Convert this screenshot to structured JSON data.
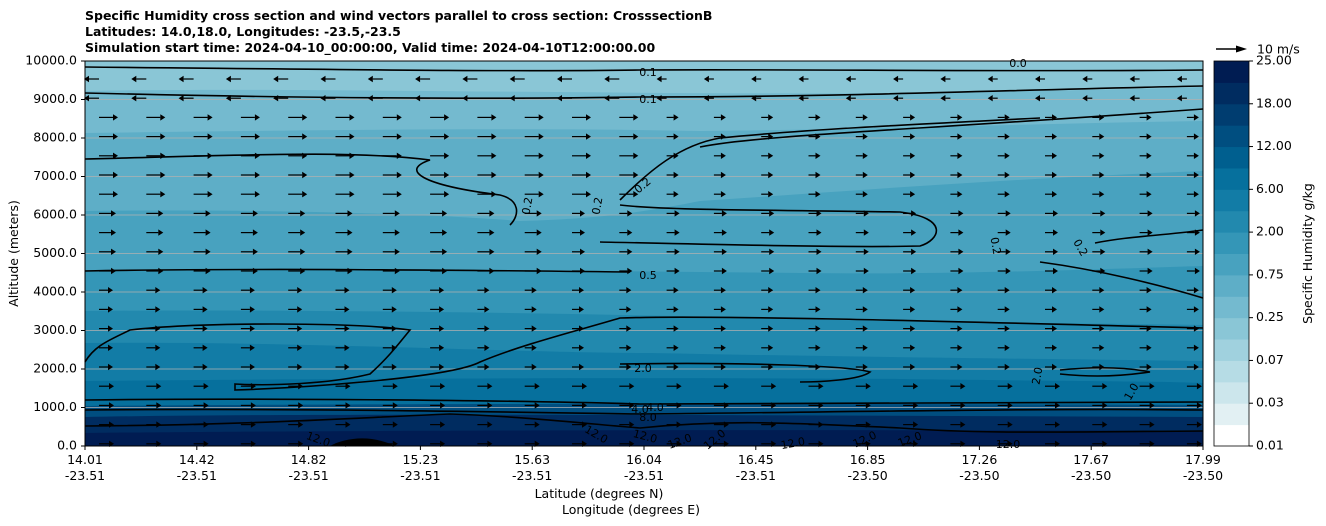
{
  "chart_data": {
    "type": "contour",
    "title_lines": [
      "Specific Humidity cross section and wind vectors parallel to cross section: CrosssectionB",
      "Latitudes: 14.0,18.0, Longitudes: -23.5,-23.5",
      "Simulation start time: 2024-04-10_00:00:00, Valid time: 2024-04-10T12:00:00.00"
    ],
    "ylabel": "Altitude (meters)",
    "xlabel_lat": "Latitude (degrees N)",
    "xlabel_lon": "Longitude (degrees E)",
    "ylim": [
      0,
      10000
    ],
    "y_ticks": [
      "0.0",
      "1000.0",
      "2000.0",
      "3000.0",
      "4000.0",
      "5000.0",
      "6000.0",
      "7000.0",
      "8000.0",
      "9000.0",
      "10000.0"
    ],
    "x_ticks": [
      {
        "lat": "14.01",
        "lon": "-23.51"
      },
      {
        "lat": "14.42",
        "lon": "-23.51"
      },
      {
        "lat": "14.82",
        "lon": "-23.51"
      },
      {
        "lat": "15.23",
        "lon": "-23.51"
      },
      {
        "lat": "15.63",
        "lon": "-23.51"
      },
      {
        "lat": "16.04",
        "lon": "-23.51"
      },
      {
        "lat": "16.45",
        "lon": "-23.51"
      },
      {
        "lat": "16.85",
        "lon": "-23.50"
      },
      {
        "lat": "17.26",
        "lon": "-23.50"
      },
      {
        "lat": "17.67",
        "lon": "-23.50"
      },
      {
        "lat": "17.99",
        "lon": "-23.50"
      }
    ],
    "colorbar": {
      "label": "Specific Humidity g/kg",
      "ticks": [
        "0.01",
        "0.03",
        "0.07",
        "0.25",
        "0.75",
        "2.00",
        "6.00",
        "12.00",
        "18.00",
        "25.00"
      ],
      "colors": [
        "#ffffff",
        "#e2f0f3",
        "#cce6ec",
        "#b6dce5",
        "#a0d1de",
        "#8ac6d6",
        "#74bacf",
        "#5eaec7",
        "#48a2bf",
        "#3496b7",
        "#2289ae",
        "#127ca6",
        "#06709d",
        "#005f8f",
        "#004e80",
        "#003d70",
        "#002c60",
        "#001c52"
      ]
    },
    "contour_levels": [
      "0.1",
      "0.2",
      "0.5",
      "1.0",
      "2.0",
      "4.0",
      "8.0",
      "12.0"
    ],
    "contour_labels": [
      {
        "text": "0.1"
      },
      {
        "text": "0.1"
      },
      {
        "text": "0.0"
      },
      {
        "text": "0.2"
      },
      {
        "text": "0.2"
      },
      {
        "text": "0.2"
      },
      {
        "text": "0.2"
      },
      {
        "text": "0.2"
      },
      {
        "text": "0.5"
      },
      {
        "text": "2.0"
      },
      {
        "text": "2.0"
      },
      {
        "text": "1.0"
      },
      {
        "text": "4.0"
      },
      {
        "text": "4.0"
      },
      {
        "text": "8.0"
      },
      {
        "text": "12.0"
      },
      {
        "text": "12.0"
      },
      {
        "text": "12.0"
      },
      {
        "text": "12.0"
      },
      {
        "text": "12.0"
      },
      {
        "text": "12.0"
      },
      {
        "text": "12.0"
      },
      {
        "text": "12.0"
      },
      {
        "text": "12.0"
      }
    ],
    "quiver_key": "10 m/s"
  }
}
